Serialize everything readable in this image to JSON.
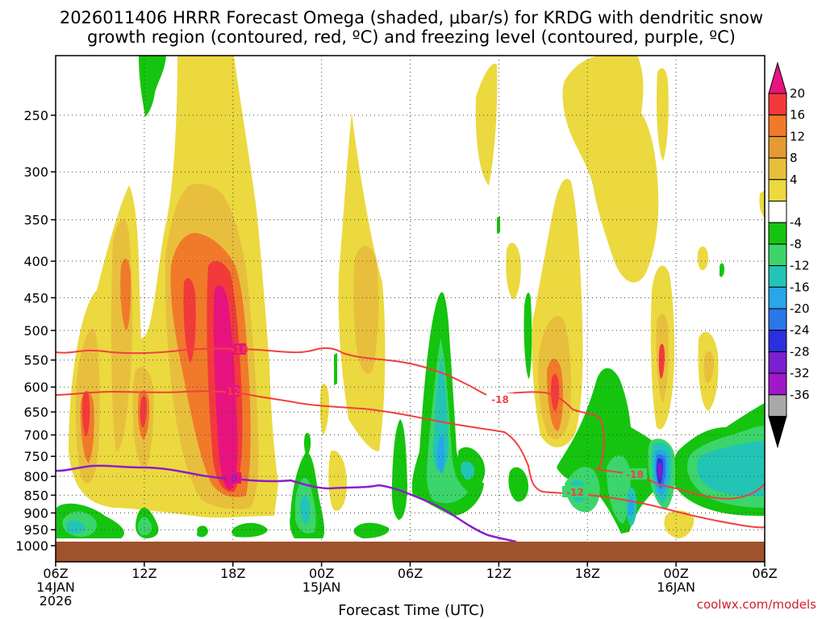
{
  "chart_data": {
    "type": "heatmap",
    "title_line1": "2026011406 HRRR Forecast Omega (shaded, μbar/s) for KRDG with dendritic snow",
    "title_line2": "growth region (contoured, red, ºC) and freezing level (contoured, purple, ºC)",
    "xlabel": "Forecast Time (UTC)",
    "credit": "coolwx.com/models",
    "y_ticks": [
      "250",
      "300",
      "350",
      "400",
      "450",
      "500",
      "550",
      "600",
      "650",
      "700",
      "750",
      "800",
      "850",
      "900",
      "950",
      "1000"
    ],
    "x_ticks": [
      {
        "label": "06Z",
        "sub1": "14JAN",
        "sub2": "2026"
      },
      {
        "label": "12Z",
        "sub1": "",
        "sub2": ""
      },
      {
        "label": "18Z",
        "sub1": "",
        "sub2": ""
      },
      {
        "label": "00Z",
        "sub1": "15JAN",
        "sub2": ""
      },
      {
        "label": "06Z",
        "sub1": "",
        "sub2": ""
      },
      {
        "label": "12Z",
        "sub1": "",
        "sub2": ""
      },
      {
        "label": "18Z",
        "sub1": "",
        "sub2": ""
      },
      {
        "label": "00Z",
        "sub1": "16JAN",
        "sub2": ""
      },
      {
        "label": "06Z",
        "sub1": "",
        "sub2": ""
      }
    ],
    "colorbar_ticks": [
      "20",
      "16",
      "12",
      "8",
      "4",
      "-4",
      "-8",
      "-12",
      "-16",
      "-20",
      "-24",
      "-28",
      "-32",
      "-36"
    ],
    "colorbar_colors": [
      "#e8137e",
      "#f23a3a",
      "#f07a2a",
      "#e59a33",
      "#e8bf3d",
      "#ebd93f",
      "#ffffff",
      "#15c40f",
      "#3cd56b",
      "#22c5b5",
      "#27a6e8",
      "#2a78e8",
      "#2b2fe0",
      "#7a1fd2",
      "#a018c9",
      "#a9a9a9",
      "#000000"
    ],
    "contour_labels": {
      "dgz_top": "-18",
      "dgz_bottom": "-12",
      "freezing": "0"
    }
  }
}
